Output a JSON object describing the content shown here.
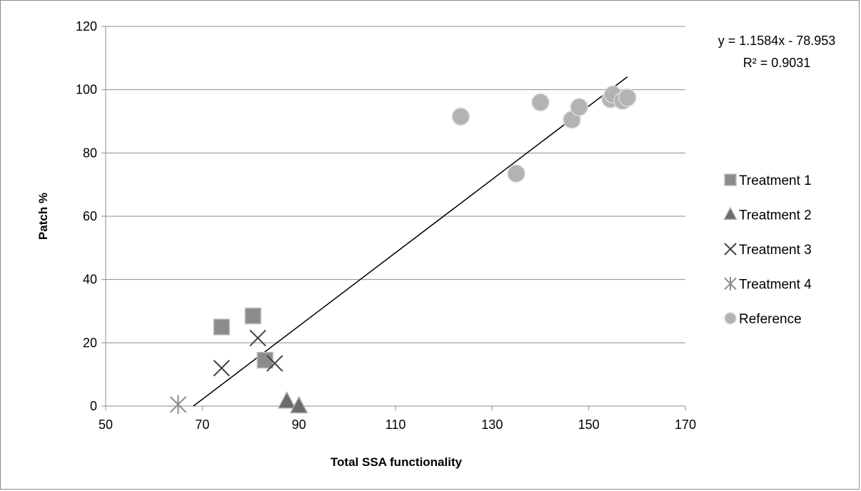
{
  "chart_data": {
    "type": "scatter",
    "title": "",
    "xlabel": "Total SSA functionality",
    "ylabel": "Patch %",
    "xlim": [
      50,
      170
    ],
    "ylim": [
      0,
      120
    ],
    "x_ticks": [
      50,
      70,
      90,
      110,
      130,
      150,
      170
    ],
    "y_ticks": [
      0,
      20,
      40,
      60,
      80,
      100,
      120
    ],
    "grid": "horizontal",
    "legend_position": "right",
    "series": [
      {
        "name": "Treatment 1",
        "marker": "square",
        "color": "#8c8c8c",
        "points": [
          [
            74,
            25
          ],
          [
            80.5,
            28.5
          ],
          [
            83,
            14.5
          ]
        ]
      },
      {
        "name": "Treatment 2",
        "marker": "triangle",
        "color": "#6b6b6b",
        "points": [
          [
            87.5,
            1.5
          ],
          [
            90,
            0
          ]
        ]
      },
      {
        "name": "Treatment 3",
        "marker": "x",
        "color": "#404040",
        "points": [
          [
            74,
            12
          ],
          [
            81.5,
            21.5
          ],
          [
            85,
            13.5
          ]
        ]
      },
      {
        "name": "Treatment 4",
        "marker": "star",
        "color": "#8c8c8c",
        "points": [
          [
            65,
            0.5
          ]
        ]
      },
      {
        "name": "Reference",
        "marker": "circle",
        "color": "#b3b3b3",
        "points": [
          [
            123.5,
            91.5
          ],
          [
            135,
            73.5
          ],
          [
            140,
            96
          ],
          [
            146.5,
            90.5
          ],
          [
            148,
            94.5
          ],
          [
            154.5,
            97
          ],
          [
            155,
            98.5
          ],
          [
            157,
            96.5
          ],
          [
            158,
            97.5
          ]
        ]
      }
    ],
    "trendline": {
      "slope": 1.1584,
      "intercept": -78.953,
      "x_range": [
        68.16,
        158
      ],
      "equation": "y = 1.1584x - 78.953",
      "r_squared": "R² = 0.9031"
    }
  }
}
